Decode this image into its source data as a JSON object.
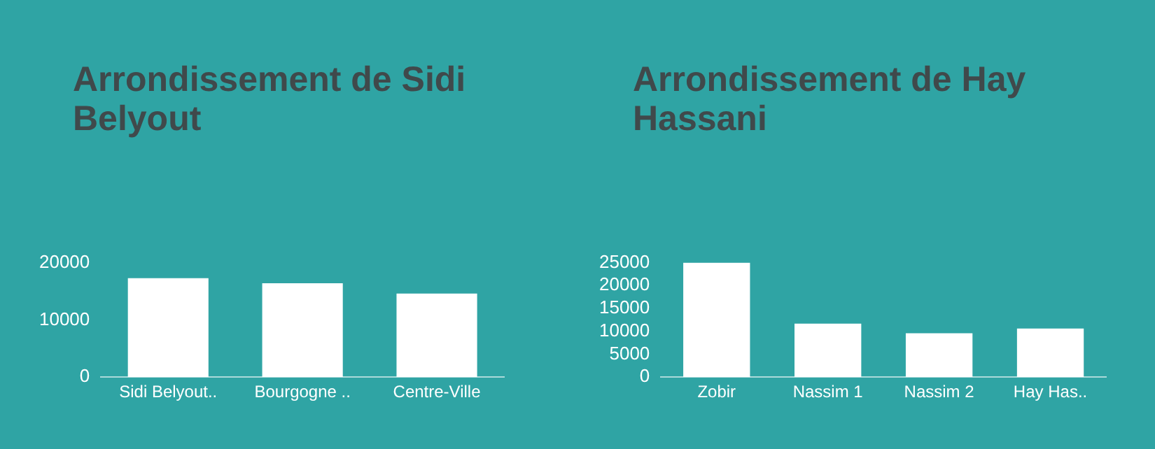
{
  "chart_data": [
    {
      "type": "bar",
      "title": "Arrondissement de Sidi Belyout",
      "categories": [
        "Sidi Belyout..",
        "Bourgogne ..",
        "Centre-Ville"
      ],
      "values": [
        17300,
        16400,
        14600
      ],
      "color": "#ffffff",
      "ylim": [
        0,
        20000
      ],
      "yticks": [
        0,
        10000,
        20000
      ],
      "grid": false,
      "legend": false
    },
    {
      "type": "bar",
      "title": "Arrondissement de Hay Hassani",
      "categories": [
        "Zobir",
        "Nassim 1",
        "Nassim 2",
        "Hay Has.."
      ],
      "values": [
        25000,
        11700,
        9600,
        10600
      ],
      "color": "#ffffff",
      "ylim": [
        0,
        25000
      ],
      "yticks": [
        0,
        5000,
        10000,
        15000,
        20000,
        25000
      ],
      "grid": false,
      "legend": false
    }
  ]
}
